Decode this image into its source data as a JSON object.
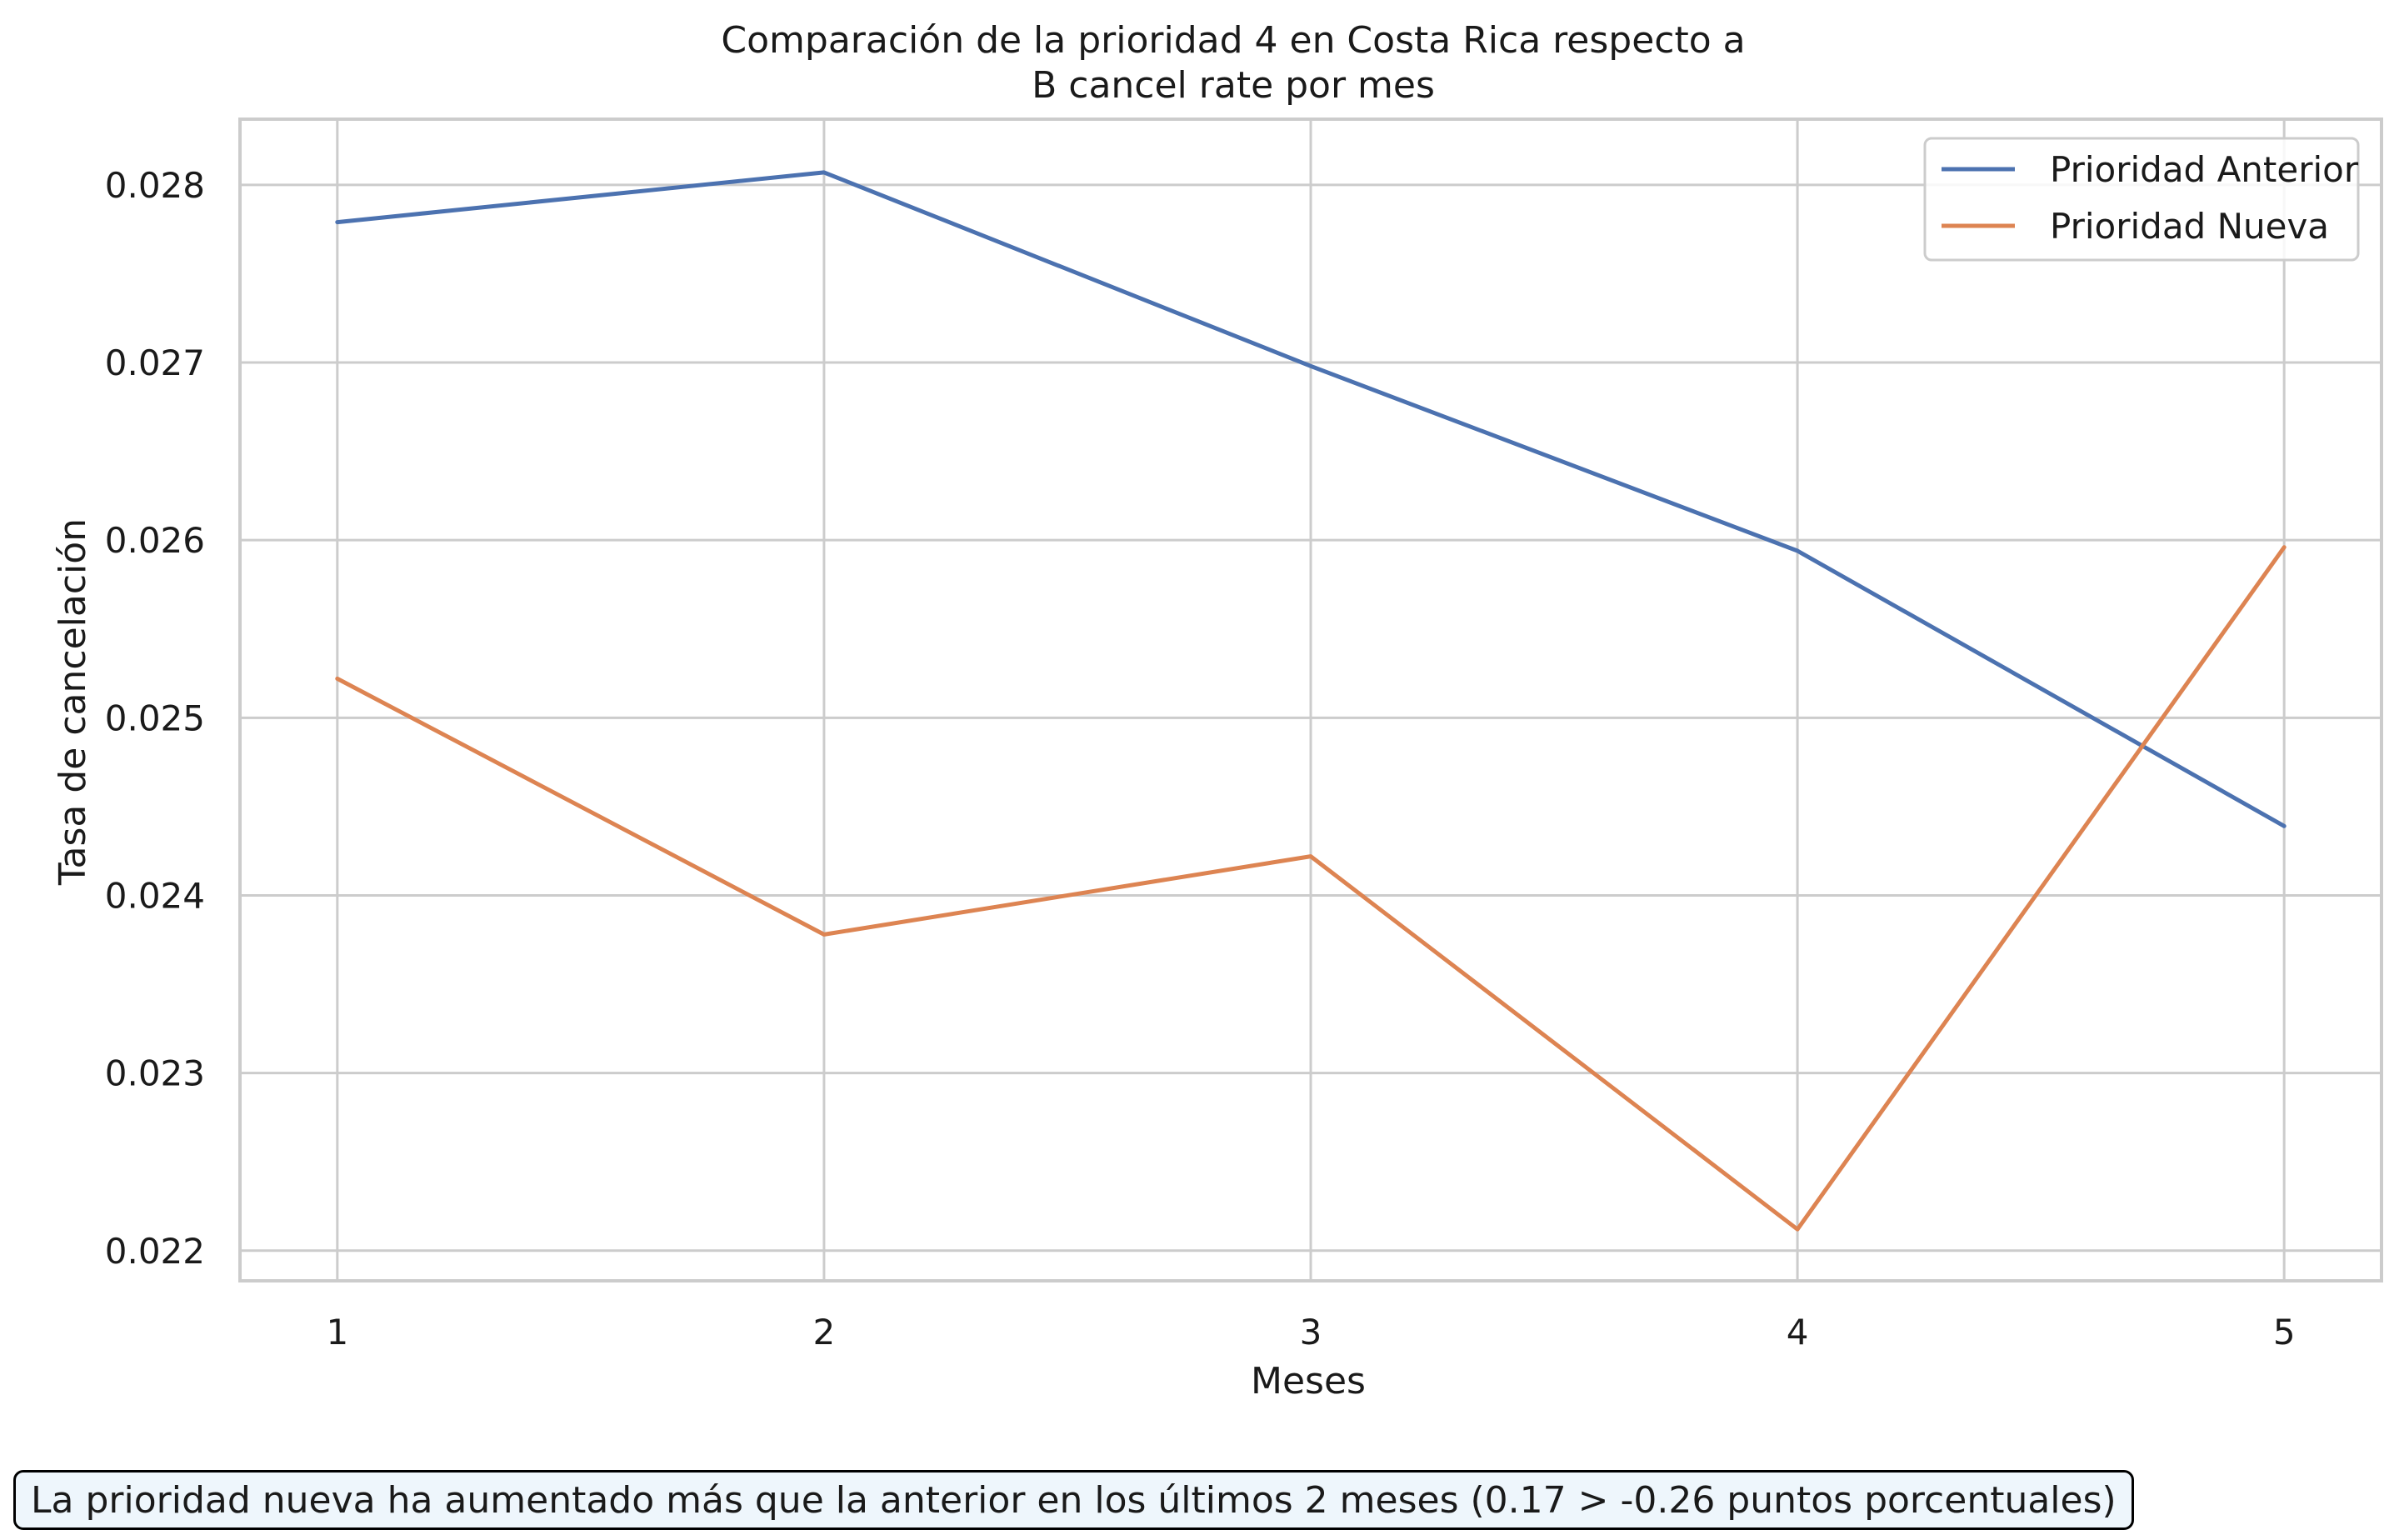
{
  "chart_data": {
    "type": "line",
    "title": "Comparación de la prioridad 4 en Costa Rica respecto a",
    "subtitle": "B cancel rate por mes",
    "xlabel": "Meses",
    "ylabel": "Tasa de cancelación",
    "x": [
      1,
      2,
      3,
      4,
      5
    ],
    "xlim": [
      0.8,
      5.2
    ],
    "ylim": [
      0.02183,
      0.02837
    ],
    "yticks": [
      0.022,
      0.023,
      0.024,
      0.025,
      0.026,
      0.027,
      0.028
    ],
    "ytick_labels": [
      "0.022",
      "0.023",
      "0.024",
      "0.025",
      "0.026",
      "0.027",
      "0.028"
    ],
    "xtick_labels": [
      "1",
      "2",
      "3",
      "4",
      "5"
    ],
    "grid": true,
    "legend_position": "top-right",
    "series": [
      {
        "name": "Prioridad Anterior",
        "color": "#4c72b0",
        "values": [
          0.02779,
          0.02807,
          0.02698,
          0.02594,
          0.02439
        ]
      },
      {
        "name": "Prioridad Nueva",
        "color": "#dd8452",
        "values": [
          0.02522,
          0.02378,
          0.02422,
          0.02212,
          0.02596
        ]
      }
    ]
  },
  "annotation": "La prioridad nueva ha aumentado más que la anterior en los últimos 2 meses (0.17 > -0.26 puntos porcentuales)"
}
